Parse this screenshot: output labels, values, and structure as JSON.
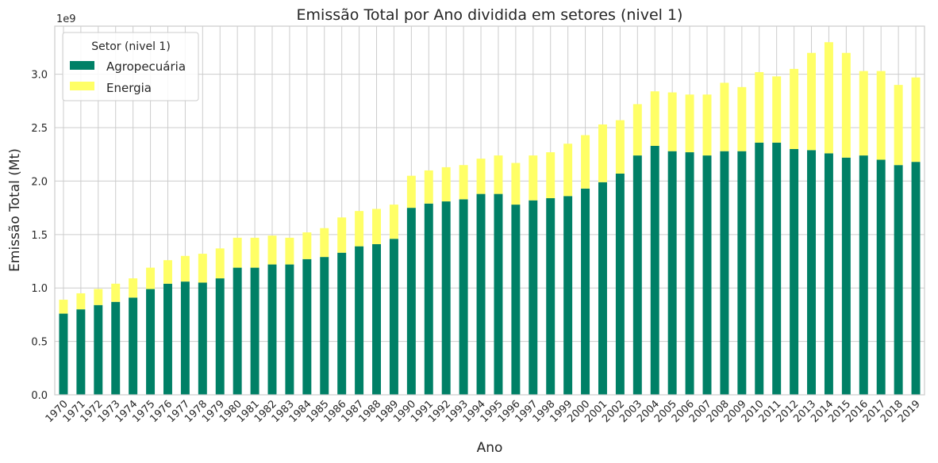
{
  "chart_data": {
    "type": "bar",
    "stacked": true,
    "title": "Emissão Total por Ano dividida em setores (nivel 1)",
    "xlabel": "Ano",
    "ylabel": "Emissão Total (Mt)",
    "y_offset_label": "1e9",
    "ylim": [
      0,
      3.45
    ],
    "y_scale": 1000000000,
    "yticks": [
      "0.0",
      "0.5",
      "1.0",
      "1.5",
      "2.0",
      "2.5",
      "3.0"
    ],
    "grid": true,
    "legend": {
      "title": "Setor (nivel 1)",
      "placement": "top-left"
    },
    "categories": [
      "1970",
      "1971",
      "1972",
      "1973",
      "1974",
      "1975",
      "1976",
      "1977",
      "1978",
      "1979",
      "1980",
      "1981",
      "1982",
      "1983",
      "1984",
      "1985",
      "1986",
      "1987",
      "1988",
      "1989",
      "1990",
      "1991",
      "1992",
      "1993",
      "1994",
      "1995",
      "1996",
      "1997",
      "1998",
      "1999",
      "2000",
      "2001",
      "2002",
      "2003",
      "2004",
      "2005",
      "2006",
      "2007",
      "2008",
      "2009",
      "2010",
      "2011",
      "2012",
      "2013",
      "2014",
      "2015",
      "2016",
      "2017",
      "2018",
      "2019"
    ],
    "series": [
      {
        "name": "Agropecuária",
        "color": "#008066",
        "values": [
          0.76,
          0.8,
          0.84,
          0.87,
          0.91,
          0.99,
          1.04,
          1.06,
          1.05,
          1.09,
          1.19,
          1.19,
          1.22,
          1.22,
          1.27,
          1.29,
          1.33,
          1.39,
          1.41,
          1.46,
          1.75,
          1.79,
          1.81,
          1.83,
          1.88,
          1.88,
          1.78,
          1.82,
          1.84,
          1.86,
          1.93,
          1.99,
          2.07,
          2.24,
          2.33,
          2.28,
          2.27,
          2.24,
          2.28,
          2.28,
          2.36,
          2.36,
          2.3,
          2.29,
          2.26,
          2.22,
          2.24,
          2.2,
          2.15,
          2.18
        ]
      },
      {
        "name": "Energia",
        "color": "#ffff66",
        "values": [
          0.13,
          0.15,
          0.15,
          0.17,
          0.18,
          0.2,
          0.22,
          0.24,
          0.27,
          0.28,
          0.28,
          0.28,
          0.27,
          0.25,
          0.25,
          0.27,
          0.33,
          0.33,
          0.33,
          0.32,
          0.3,
          0.31,
          0.32,
          0.32,
          0.33,
          0.36,
          0.39,
          0.42,
          0.43,
          0.49,
          0.5,
          0.54,
          0.5,
          0.48,
          0.51,
          0.55,
          0.54,
          0.57,
          0.64,
          0.6,
          0.66,
          0.62,
          0.75,
          0.91,
          1.04,
          0.98,
          0.79,
          0.83,
          0.75,
          0.79
        ]
      }
    ]
  }
}
